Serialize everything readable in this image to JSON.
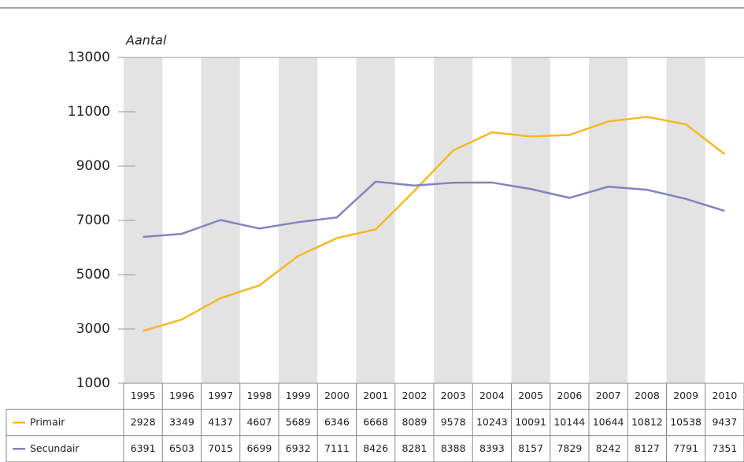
{
  "chart_data": {
    "type": "line",
    "y_label": "Aantal",
    "categories": [
      "1995",
      "1996",
      "1997",
      "1998",
      "1999",
      "2000",
      "2001",
      "2002",
      "2003",
      "2004",
      "2005",
      "2006",
      "2007",
      "2008",
      "2009",
      "2010"
    ],
    "series": [
      {
        "name": "Primair",
        "color": "#f5b925",
        "values": [
          2928,
          3349,
          4137,
          4607,
          5689,
          6346,
          6668,
          8089,
          9578,
          10243,
          10091,
          10144,
          10644,
          10812,
          10538,
          9437
        ]
      },
      {
        "name": "Secundair",
        "color": "#8383c1",
        "values": [
          6391,
          6503,
          7015,
          6699,
          6932,
          7111,
          8426,
          8281,
          8388,
          8393,
          8157,
          7829,
          8242,
          8127,
          7791,
          7351
        ]
      }
    ],
    "ylim": [
      1000,
      13000
    ],
    "yticks": [
      1000,
      3000,
      5000,
      7000,
      9000,
      11000,
      13000
    ]
  }
}
